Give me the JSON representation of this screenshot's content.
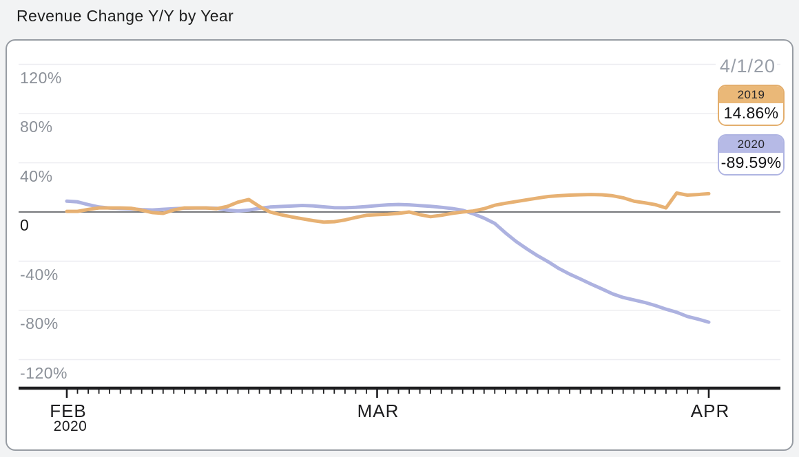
{
  "chart_data": {
    "type": "line",
    "title": "Revenue Change Y/Y by Year",
    "y_axis": {
      "ticks": [
        {
          "value": 120,
          "label": "120%"
        },
        {
          "value": 80,
          "label": "80%"
        },
        {
          "value": 40,
          "label": "40%"
        },
        {
          "value": 0,
          "label": "0"
        },
        {
          "value": -40,
          "label": "-40%"
        },
        {
          "value": -80,
          "label": "-80%"
        },
        {
          "value": -120,
          "label": "-120%"
        }
      ],
      "ylim": [
        -140,
        140
      ],
      "grid": true
    },
    "x_axis": {
      "total_days": 61,
      "months": [
        {
          "label": "FEB",
          "sublabel": "2020",
          "day": 0
        },
        {
          "label": "MAR",
          "sublabel": "",
          "day": 29
        },
        {
          "label": "APR",
          "sublabel": "",
          "day": 60
        }
      ]
    },
    "cursor": {
      "date": "4/1/20",
      "readouts": [
        {
          "series": "2019",
          "value": "14.86%"
        },
        {
          "series": "2020",
          "value": "-89.59%"
        }
      ]
    },
    "series": [
      {
        "name": "2019",
        "color": "#e7b173",
        "values": [
          0.5,
          0.5,
          2.0,
          3.3,
          3.3,
          3.3,
          3.0,
          1.5,
          -0.5,
          -1.1,
          1.6,
          3.3,
          3.3,
          3.3,
          2.7,
          4.5,
          8.0,
          10.1,
          4.5,
          0.0,
          -2.2,
          -4.0,
          -5.5,
          -7.0,
          -8.2,
          -7.9,
          -6.5,
          -4.5,
          -2.7,
          -2.2,
          -1.8,
          -1.1,
          0.0,
          -2.2,
          -3.8,
          -2.7,
          -1.1,
          0.0,
          0.8,
          2.7,
          5.5,
          7.1,
          8.5,
          9.9,
          11.3,
          12.6,
          13.2,
          13.7,
          14.0,
          14.2,
          14.0,
          13.2,
          11.5,
          8.8,
          7.5,
          6.0,
          3.3,
          15.4,
          13.7,
          14.2,
          14.86
        ]
      },
      {
        "name": "2020",
        "color": "#adb2e0",
        "values": [
          8.8,
          8.2,
          6.0,
          4.0,
          3.2,
          2.8,
          2.5,
          1.9,
          1.6,
          2.2,
          2.7,
          3.0,
          3.2,
          3.3,
          3.0,
          1.5,
          0.8,
          1.5,
          3.0,
          4.0,
          4.5,
          4.8,
          5.3,
          5.0,
          4.2,
          3.5,
          3.4,
          3.8,
          4.4,
          5.2,
          5.8,
          6.1,
          5.8,
          5.2,
          4.6,
          3.8,
          2.8,
          1.4,
          -1.5,
          -5.0,
          -9.3,
          -17.0,
          -24.0,
          -30.0,
          -35.6,
          -40.5,
          -46.0,
          -50.5,
          -54.5,
          -58.6,
          -62.5,
          -66.5,
          -69.5,
          -71.5,
          -73.5,
          -76.0,
          -79.0,
          -81.5,
          -84.9,
          -87.1,
          -89.59
        ]
      }
    ]
  },
  "legend": {
    "items": [
      {
        "name": "2019",
        "value": "14.86%",
        "fill": "#eab878",
        "border": "#e3ae6d"
      },
      {
        "name": "2020",
        "value": "-89.59%",
        "fill": "#b6bae6",
        "border": "#afb4e2"
      }
    ]
  }
}
